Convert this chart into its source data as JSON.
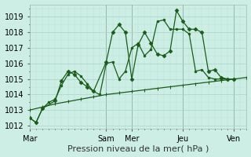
{
  "background_color": "#cceee4",
  "grid_color_major": "#aad4c8",
  "grid_color_minor": "#bbddd4",
  "line_color": "#1a5c1a",
  "ylim": [
    1011.8,
    1019.8
  ],
  "yticks": [
    1012,
    1013,
    1014,
    1015,
    1016,
    1017,
    1018,
    1019
  ],
  "xlabel": "Pression niveau de la mer( hPa )",
  "xlabel_fontsize": 8,
  "tick_fontsize": 7,
  "day_labels": [
    "Mar",
    "Sam",
    "Mer",
    "Jeu",
    "Ven"
  ],
  "day_x": [
    0,
    48,
    64,
    96,
    128
  ],
  "xlim": [
    0,
    136
  ],
  "vline_color": "#556655",
  "flat_line": {
    "x": [
      0,
      8,
      16,
      24,
      32,
      40,
      48,
      56,
      64,
      72,
      80,
      88,
      96,
      104,
      112,
      120,
      128,
      136
    ],
    "y": [
      1013.0,
      1013.2,
      1013.4,
      1013.55,
      1013.7,
      1013.85,
      1014.0,
      1014.1,
      1014.2,
      1014.3,
      1014.4,
      1014.5,
      1014.6,
      1014.7,
      1014.8,
      1014.9,
      1015.0,
      1015.1
    ]
  },
  "line1": {
    "x": [
      0,
      4,
      8,
      16,
      20,
      24,
      28,
      32,
      36,
      40,
      48,
      52,
      56,
      60,
      64,
      68,
      72,
      76,
      80,
      84,
      88,
      92,
      96,
      100,
      104,
      108,
      112,
      116,
      120,
      124,
      128
    ],
    "y": [
      1012.5,
      1012.2,
      1013.1,
      1013.6,
      1014.9,
      1015.5,
      1015.3,
      1014.8,
      1014.5,
      1014.2,
      1016.1,
      1018.0,
      1018.5,
      1018.0,
      1015.0,
      1017.2,
      1018.0,
      1017.3,
      1016.6,
      1016.5,
      1016.8,
      1019.4,
      1018.7,
      1018.2,
      1018.2,
      1018.0,
      1015.5,
      1015.6,
      1015.1,
      1015.0,
      1015.0
    ]
  },
  "line2": {
    "x": [
      0,
      4,
      8,
      12,
      16,
      20,
      24,
      28,
      32,
      36,
      40,
      44,
      48,
      52,
      56,
      60,
      64,
      68,
      72,
      76,
      80,
      84,
      88,
      92,
      96,
      100,
      104,
      108,
      112,
      116,
      120,
      124,
      128
    ],
    "y": [
      1012.5,
      1012.2,
      1013.1,
      1013.5,
      1013.7,
      1014.6,
      1015.3,
      1015.5,
      1015.2,
      1014.7,
      1014.2,
      1014.0,
      1016.0,
      1016.1,
      1015.0,
      1015.5,
      1017.0,
      1017.3,
      1016.5,
      1016.9,
      1018.7,
      1018.8,
      1018.2,
      1018.2,
      1018.2,
      1017.9,
      1015.5,
      1015.6,
      1015.1,
      1015.0,
      1015.0,
      1015.0,
      1015.0
    ]
  }
}
